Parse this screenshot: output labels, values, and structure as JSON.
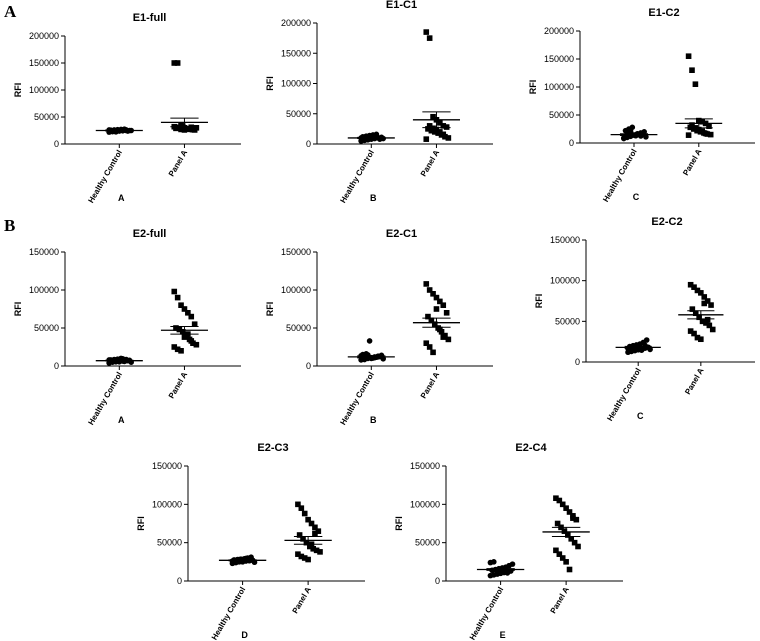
{
  "panels": [
    "A",
    "B"
  ],
  "chart_data": [
    {
      "type": "scatter",
      "title": "E1-full",
      "ylabel": "RFI",
      "ylim": [
        0,
        200000
      ],
      "yticks": [
        0,
        50000,
        100000,
        150000,
        200000
      ],
      "categories": [
        "Healthy Control",
        "Panel A"
      ],
      "sublabel": "A",
      "series": [
        {
          "category": "Healthy Control",
          "marker": "circle",
          "mean": 25000,
          "sem": 1000,
          "values": [
            22000,
            23000,
            23500,
            24000,
            24500,
            25000,
            25000,
            25500,
            26000,
            26500,
            27000,
            27500,
            24000,
            25000,
            26000,
            23000,
            22500,
            24500,
            25500,
            26000
          ]
        },
        {
          "category": "Panel A",
          "marker": "square",
          "mean": 40000,
          "sem": 8000,
          "values": [
            150000,
            150000,
            35000,
            30000,
            28000,
            27000,
            26000,
            29000,
            31000,
            33000,
            28000,
            27500,
            26500,
            30000,
            32000,
            29500,
            27000,
            26000,
            28500,
            31000
          ]
        }
      ]
    },
    {
      "type": "scatter",
      "title": "E1-C1",
      "ylabel": "RFI",
      "ylim": [
        0,
        200000
      ],
      "yticks": [
        0,
        50000,
        100000,
        150000,
        200000
      ],
      "categories": [
        "Healthy Control",
        "Panel A"
      ],
      "sublabel": "B",
      "series": [
        {
          "category": "Healthy Control",
          "marker": "circle",
          "mean": 10000,
          "sem": 1000,
          "values": [
            5000,
            6000,
            7000,
            8000,
            9000,
            10000,
            11000,
            12000,
            13000,
            14000,
            15000,
            16000,
            8000,
            9000,
            10000,
            11000,
            7500,
            12500,
            9500,
            10500
          ]
        },
        {
          "category": "Panel A",
          "marker": "square",
          "mean": 40000,
          "sem": 13000,
          "values": [
            185000,
            175000,
            45000,
            40000,
            35000,
            30000,
            28000,
            25000,
            22000,
            20000,
            18000,
            15000,
            12000,
            10000,
            8000,
            30000,
            26000,
            24000,
            20000,
            16000
          ]
        }
      ]
    },
    {
      "type": "scatter",
      "title": "E1-C2",
      "ylabel": "RFI",
      "ylim": [
        0,
        200000
      ],
      "yticks": [
        0,
        50000,
        100000,
        150000,
        200000
      ],
      "categories": [
        "Healthy Control",
        "Panel A"
      ],
      "sublabel": "C",
      "series": [
        {
          "category": "Healthy Control",
          "marker": "circle",
          "mean": 15000,
          "sem": 1500,
          "values": [
            8000,
            10000,
            12000,
            14000,
            16000,
            18000,
            20000,
            22000,
            25000,
            28000,
            13000,
            15000,
            17000,
            11000,
            9000,
            19000,
            21000,
            14500,
            16500,
            12500
          ]
        },
        {
          "category": "Panel A",
          "marker": "square",
          "mean": 35000,
          "sem": 8000,
          "values": [
            155000,
            130000,
            105000,
            40000,
            38000,
            35000,
            30000,
            28000,
            25000,
            22000,
            20000,
            18000,
            16000,
            15000,
            14000,
            32000,
            27000,
            24000,
            21000,
            17000
          ]
        }
      ]
    },
    {
      "type": "scatter",
      "title": "E2-full",
      "ylabel": "RFI",
      "ylim": [
        0,
        150000
      ],
      "yticks": [
        0,
        50000,
        100000,
        150000
      ],
      "categories": [
        "Healthy Control",
        "Panel A"
      ],
      "sublabel": "A",
      "series": [
        {
          "category": "Healthy Control",
          "marker": "circle",
          "mean": 7000,
          "sem": 500,
          "values": [
            4000,
            5000,
            5500,
            6000,
            6500,
            7000,
            7500,
            8000,
            8500,
            9000,
            10000,
            6000,
            7000,
            5000,
            8000,
            6500,
            7500,
            5500,
            9500,
            8500
          ]
        },
        {
          "category": "Panel A",
          "marker": "square",
          "mean": 47000,
          "sem": 5000,
          "values": [
            98000,
            90000,
            80000,
            75000,
            70000,
            65000,
            55000,
            50000,
            48000,
            45000,
            40000,
            35000,
            30000,
            28000,
            25000,
            22000,
            20000,
            38000,
            42000,
            33000
          ]
        }
      ]
    },
    {
      "type": "scatter",
      "title": "E2-C1",
      "ylabel": "RFI",
      "ylim": [
        0,
        150000
      ],
      "yticks": [
        0,
        50000,
        100000,
        150000
      ],
      "categories": [
        "Healthy Control",
        "Panel A"
      ],
      "sublabel": "B",
      "series": [
        {
          "category": "Healthy Control",
          "marker": "circle",
          "mean": 12000,
          "sem": 1300,
          "values": [
            8000,
            9000,
            10000,
            11000,
            12000,
            13000,
            14000,
            15000,
            16000,
            33000,
            10500,
            11500,
            12500,
            9500,
            13500,
            8500,
            14500,
            10000,
            11000,
            12000
          ]
        },
        {
          "category": "Panel A",
          "marker": "square",
          "mean": 57000,
          "sem": 6000,
          "values": [
            108000,
            100000,
            95000,
            90000,
            85000,
            80000,
            70000,
            65000,
            60000,
            55000,
            50000,
            45000,
            40000,
            35000,
            30000,
            25000,
            18000,
            75000,
            48000,
            38000
          ]
        }
      ]
    },
    {
      "type": "scatter",
      "title": "E2-C2",
      "ylabel": "RFI",
      "ylim": [
        0,
        150000
      ],
      "yticks": [
        0,
        50000,
        100000,
        150000
      ],
      "categories": [
        "Healthy Control",
        "Panel A"
      ],
      "sublabel": "C",
      "series": [
        {
          "category": "Healthy Control",
          "marker": "circle",
          "mean": 18000,
          "sem": 1200,
          "values": [
            12000,
            13000,
            14000,
            15000,
            16000,
            17000,
            18000,
            19000,
            20000,
            21000,
            22000,
            24000,
            27000,
            15500,
            16500,
            17500,
            18500,
            19500,
            14500,
            20500
          ]
        },
        {
          "category": "Panel A",
          "marker": "square",
          "mean": 58000,
          "sem": 5000,
          "values": [
            95000,
            92000,
            88000,
            85000,
            80000,
            75000,
            70000,
            65000,
            60000,
            55000,
            50000,
            48000,
            45000,
            40000,
            38000,
            35000,
            30000,
            28000,
            72000,
            52000
          ]
        }
      ]
    },
    {
      "type": "scatter",
      "title": "E2-C3",
      "ylabel": "RFI",
      "ylim": [
        0,
        150000
      ],
      "yticks": [
        0,
        50000,
        100000,
        150000
      ],
      "categories": [
        "Healthy Control",
        "Panel A"
      ],
      "sublabel": "D",
      "series": [
        {
          "category": "Healthy Control",
          "marker": "circle",
          "mean": 27000,
          "sem": 600,
          "values": [
            23000,
            24000,
            25000,
            25500,
            26000,
            26500,
            27000,
            27500,
            28000,
            28500,
            29000,
            30000,
            31000,
            24500,
            26000,
            27000,
            28000,
            25000,
            29500,
            26500
          ]
        },
        {
          "category": "Panel A",
          "marker": "square",
          "mean": 53000,
          "sem": 5000,
          "values": [
            100000,
            95000,
            88000,
            80000,
            75000,
            70000,
            65000,
            60000,
            55000,
            50000,
            45000,
            42000,
            40000,
            38000,
            35000,
            32000,
            30000,
            28000,
            48000,
            62000
          ]
        }
      ]
    },
    {
      "type": "scatter",
      "title": "E2-C4",
      "ylabel": "RFI",
      "ylim": [
        0,
        150000
      ],
      "yticks": [
        0,
        50000,
        100000,
        150000
      ],
      "categories": [
        "Healthy Control",
        "Panel A"
      ],
      "sublabel": "E",
      "series": [
        {
          "category": "Healthy Control",
          "marker": "circle",
          "mean": 15000,
          "sem": 1200,
          "values": [
            7000,
            8000,
            9000,
            10000,
            11000,
            12000,
            13000,
            14000,
            15000,
            16000,
            17000,
            18000,
            20000,
            22000,
            24000,
            25000,
            12500,
            14500,
            16500,
            10500
          ]
        },
        {
          "category": "Panel A",
          "marker": "square",
          "mean": 64000,
          "sem": 6000,
          "values": [
            108000,
            105000,
            100000,
            95000,
            90000,
            85000,
            80000,
            75000,
            70000,
            65000,
            60000,
            55000,
            50000,
            45000,
            40000,
            35000,
            30000,
            25000,
            15000,
            82000
          ]
        }
      ]
    }
  ]
}
